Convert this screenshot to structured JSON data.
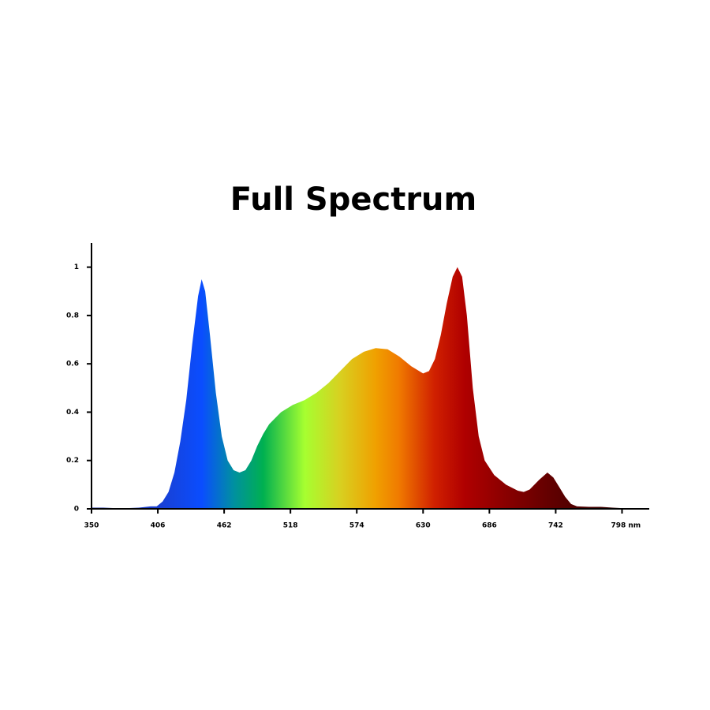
{
  "chart_data": {
    "type": "area",
    "title": "Full Spectrum",
    "x": [
      350,
      360,
      370,
      380,
      390,
      400,
      405,
      410,
      415,
      420,
      425,
      430,
      435,
      440,
      443,
      446,
      450,
      455,
      460,
      465,
      470,
      475,
      480,
      485,
      490,
      495,
      500,
      510,
      520,
      530,
      540,
      550,
      560,
      570,
      580,
      590,
      600,
      610,
      620,
      630,
      635,
      640,
      645,
      650,
      655,
      659,
      663,
      667,
      672,
      677,
      682,
      690,
      700,
      710,
      715,
      720,
      728,
      735,
      740,
      745,
      750,
      755,
      760,
      770,
      780,
      790,
      798
    ],
    "values": [
      0.005,
      0.005,
      0.003,
      0.003,
      0.005,
      0.01,
      0.01,
      0.03,
      0.07,
      0.15,
      0.28,
      0.45,
      0.68,
      0.88,
      0.95,
      0.9,
      0.72,
      0.48,
      0.3,
      0.2,
      0.16,
      0.15,
      0.16,
      0.2,
      0.26,
      0.31,
      0.35,
      0.4,
      0.43,
      0.45,
      0.48,
      0.52,
      0.57,
      0.62,
      0.65,
      0.665,
      0.66,
      0.63,
      0.59,
      0.56,
      0.57,
      0.62,
      0.72,
      0.85,
      0.96,
      1.0,
      0.96,
      0.8,
      0.5,
      0.3,
      0.2,
      0.14,
      0.1,
      0.075,
      0.07,
      0.08,
      0.12,
      0.15,
      0.13,
      0.09,
      0.05,
      0.02,
      0.01,
      0.008,
      0.008,
      0.005,
      0.003
    ],
    "xlim": [
      350,
      821
    ],
    "ylim": [
      0,
      1.1
    ],
    "xticks": [
      350,
      406,
      462,
      518,
      574,
      630,
      686,
      742,
      {
        "value": 798,
        "label": "798 nm"
      }
    ],
    "yticks": [
      0,
      0.2,
      0.4,
      0.6,
      0.8,
      1
    ]
  }
}
